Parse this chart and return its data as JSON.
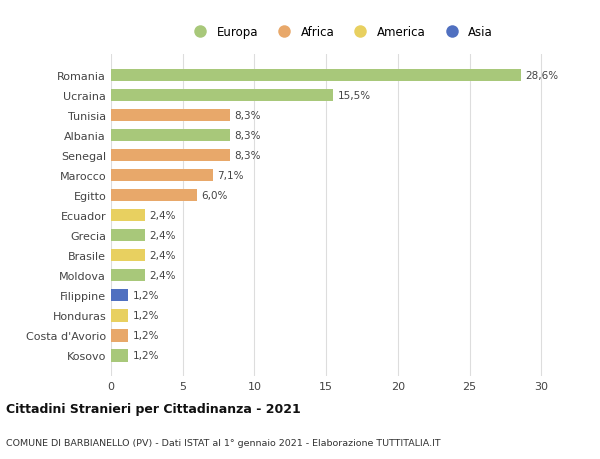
{
  "countries": [
    "Romania",
    "Ucraina",
    "Tunisia",
    "Albania",
    "Senegal",
    "Marocco",
    "Egitto",
    "Ecuador",
    "Grecia",
    "Brasile",
    "Moldova",
    "Filippine",
    "Honduras",
    "Costa d'Avorio",
    "Kosovo"
  ],
  "values": [
    28.6,
    15.5,
    8.3,
    8.3,
    8.3,
    7.1,
    6.0,
    2.4,
    2.4,
    2.4,
    2.4,
    1.2,
    1.2,
    1.2,
    1.2
  ],
  "labels": [
    "28,6%",
    "15,5%",
    "8,3%",
    "8,3%",
    "8,3%",
    "7,1%",
    "6,0%",
    "2,4%",
    "2,4%",
    "2,4%",
    "2,4%",
    "1,2%",
    "1,2%",
    "1,2%",
    "1,2%"
  ],
  "continents": [
    "Europa",
    "Europa",
    "Africa",
    "Europa",
    "Africa",
    "Africa",
    "Africa",
    "America",
    "Europa",
    "America",
    "Europa",
    "Asia",
    "America",
    "Africa",
    "Europa"
  ],
  "colors": {
    "Europa": "#a8c87a",
    "Africa": "#e8a86a",
    "America": "#e8d060",
    "Asia": "#5070c0"
  },
  "legend_entries": [
    "Europa",
    "Africa",
    "America",
    "Asia"
  ],
  "title": "Cittadini Stranieri per Cittadinanza - 2021",
  "subtitle": "COMUNE DI BARBIANELLO (PV) - Dati ISTAT al 1° gennaio 2021 - Elaborazione TUTTITALIA.IT",
  "xlim": [
    0,
    32
  ],
  "xticks": [
    0,
    5,
    10,
    15,
    20,
    25,
    30
  ],
  "background_color": "#ffffff",
  "grid_color": "#dddddd"
}
